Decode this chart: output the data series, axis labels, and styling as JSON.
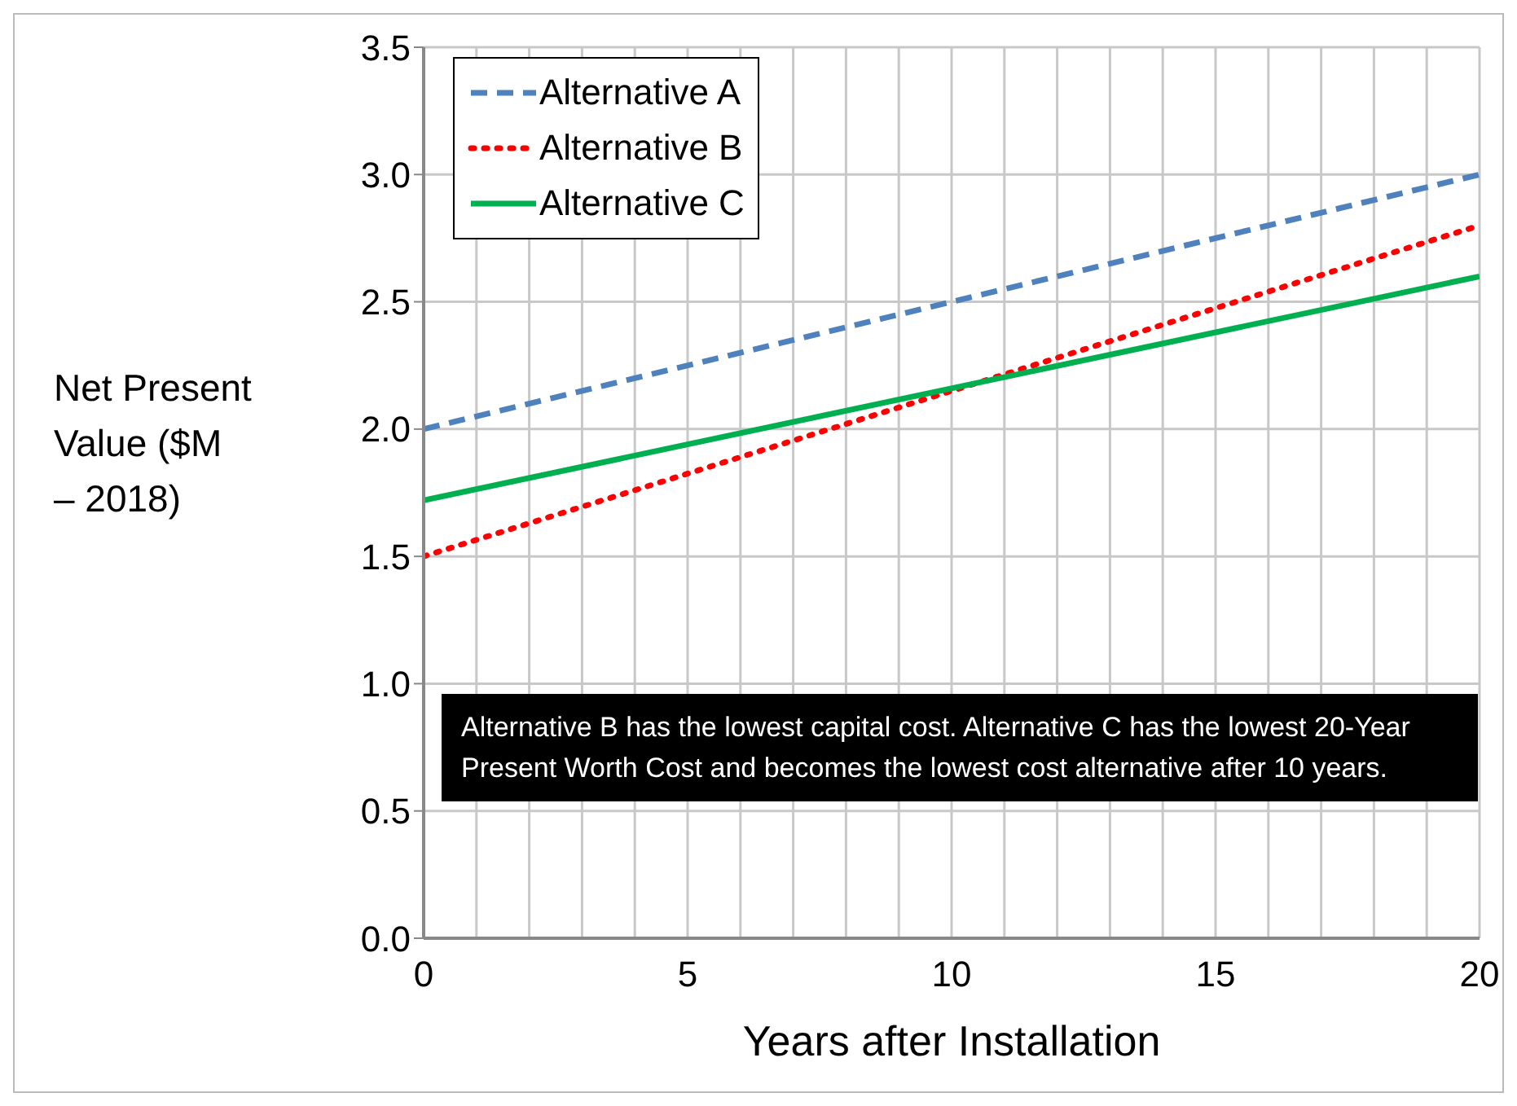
{
  "chart_data": {
    "type": "line",
    "xlabel": "Years after Installation",
    "ylabel": "Net Present Value ($M – 2018)",
    "x": [
      0,
      20
    ],
    "series": [
      {
        "name": "Alternative A",
        "color": "#4f81bd",
        "line_style": "dashed",
        "values": [
          2.0,
          3.0
        ]
      },
      {
        "name": "Alternative B",
        "color": "#ff0000",
        "line_style": "dotted",
        "values": [
          1.5,
          2.8
        ]
      },
      {
        "name": "Alternative C",
        "color": "#00b050",
        "line_style": "solid",
        "values": [
          1.72,
          2.6
        ]
      }
    ],
    "xlim": [
      0,
      20
    ],
    "xticks": [
      0,
      {
        "value": 1,
        "label": null
      },
      {
        "value": 2,
        "label": null
      },
      {
        "value": 3,
        "label": null
      },
      {
        "value": 4,
        "label": null
      },
      5,
      {
        "value": 6,
        "label": null
      },
      {
        "value": 7,
        "label": null
      },
      {
        "value": 8,
        "label": null
      },
      {
        "value": 9,
        "label": null
      },
      10,
      {
        "value": 11,
        "label": null
      },
      {
        "value": 12,
        "label": null
      },
      {
        "value": 13,
        "label": null
      },
      {
        "value": 14,
        "label": null
      },
      15,
      {
        "value": 16,
        "label": null
      },
      {
        "value": 17,
        "label": null
      },
      {
        "value": 18,
        "label": null
      },
      {
        "value": 19,
        "label": null
      },
      20
    ],
    "ylim": [
      0,
      3.5
    ],
    "yticks": [
      {
        "value": 0,
        "label": "0.0"
      },
      {
        "value": 0.5,
        "label": "0.5"
      },
      {
        "value": 1,
        "label": "1.0"
      },
      {
        "value": 1.5,
        "label": "1.5"
      },
      {
        "value": 2,
        "label": "2.0"
      },
      {
        "value": 2.5,
        "label": "2.5"
      },
      {
        "value": 3,
        "label": "3.0"
      },
      {
        "value": 3.5,
        "label": "3.5"
      }
    ],
    "grid": true,
    "legend": "top left",
    "marker": "none",
    "annotations": [
      "Alternative B has the lowest capital cost.  Alternative C has the lowest 20-Year Present Worth Cost and becomes the lowest cost alternative after 10 years."
    ]
  }
}
